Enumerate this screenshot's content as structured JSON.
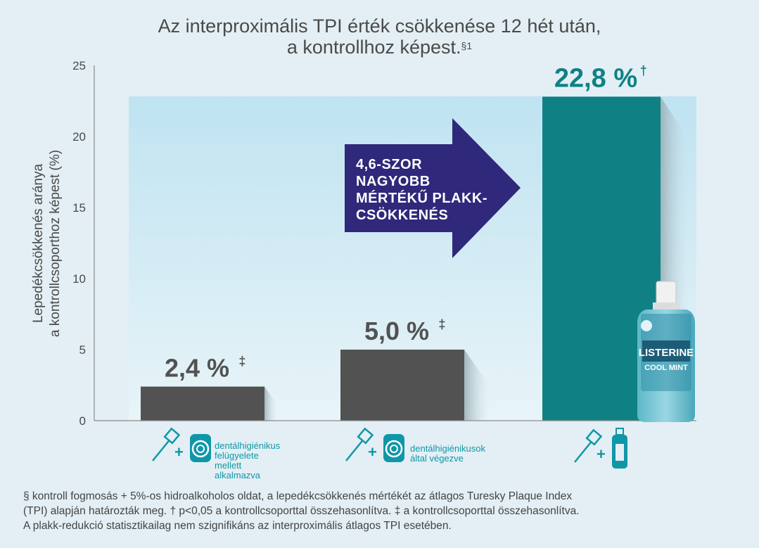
{
  "title_line1": "Az interproximális TPI érték csökkenése 12 hét után,",
  "title_line2": "a kontrollhoz képest.",
  "title_sup": "§1",
  "chart_data": {
    "type": "bar",
    "categories": [
      "dentálhigiénikus felügyelete mellett alkalmazva",
      "dentálhigiénikusok által végezve",
      "LISTERINE COOL MINT"
    ],
    "values": [
      2.4,
      5.0,
      22.8
    ],
    "value_labels": [
      "2,4 %",
      "5,0 %",
      "22,8 %"
    ],
    "value_marks": [
      "‡",
      "‡",
      "†"
    ],
    "ylabel_line1": "Lepedékcsökkenés aránya",
    "ylabel_line2": "a kontrollcsoporthoz képest (%)",
    "ylim": [
      0,
      25
    ],
    "yticks": [
      0,
      5,
      10,
      15,
      20,
      25
    ],
    "bar_colors": [
      "#525252",
      "#525252",
      "#0f8185"
    ],
    "value_label_colors": [
      "#525252",
      "#525252",
      "#0f8185"
    ],
    "grid": false
  },
  "callout_lines": [
    "4,6-SZOR",
    "NAGYOBB",
    "MÉRTÉKŰ PLAKK-",
    "CSÖKKENÉS"
  ],
  "legend": {
    "item1_lines": [
      "dentálhigiénikus",
      "felügyelete",
      "mellett",
      "alkalmazva"
    ],
    "item2_lines": [
      "dentálhigiénikusok",
      "által végezve"
    ]
  },
  "product_label": {
    "brand": "LISTERINE",
    "variant": "COOL MINT"
  },
  "footnote_lines": [
    "§ kontroll fogmosás + 5%-os hidroalkoholos oldat, a lepedékcsökkenés mértékét az átlagos Turesky Plaque Index",
    "(TPI) alapján határozták meg. † p<0,05 a kontrollcsoporttal összehasonlítva. ‡ a kontrollcsoporttal összehasonlítva.",
    "A plakk-redukció statisztikailag nem szignifikáns az interproximális átlagos TPI esetében."
  ],
  "colors": {
    "teal": "#0f8185",
    "gray_bar": "#525252",
    "arrow": "#30287b",
    "accent_text": "#0f97a8"
  }
}
